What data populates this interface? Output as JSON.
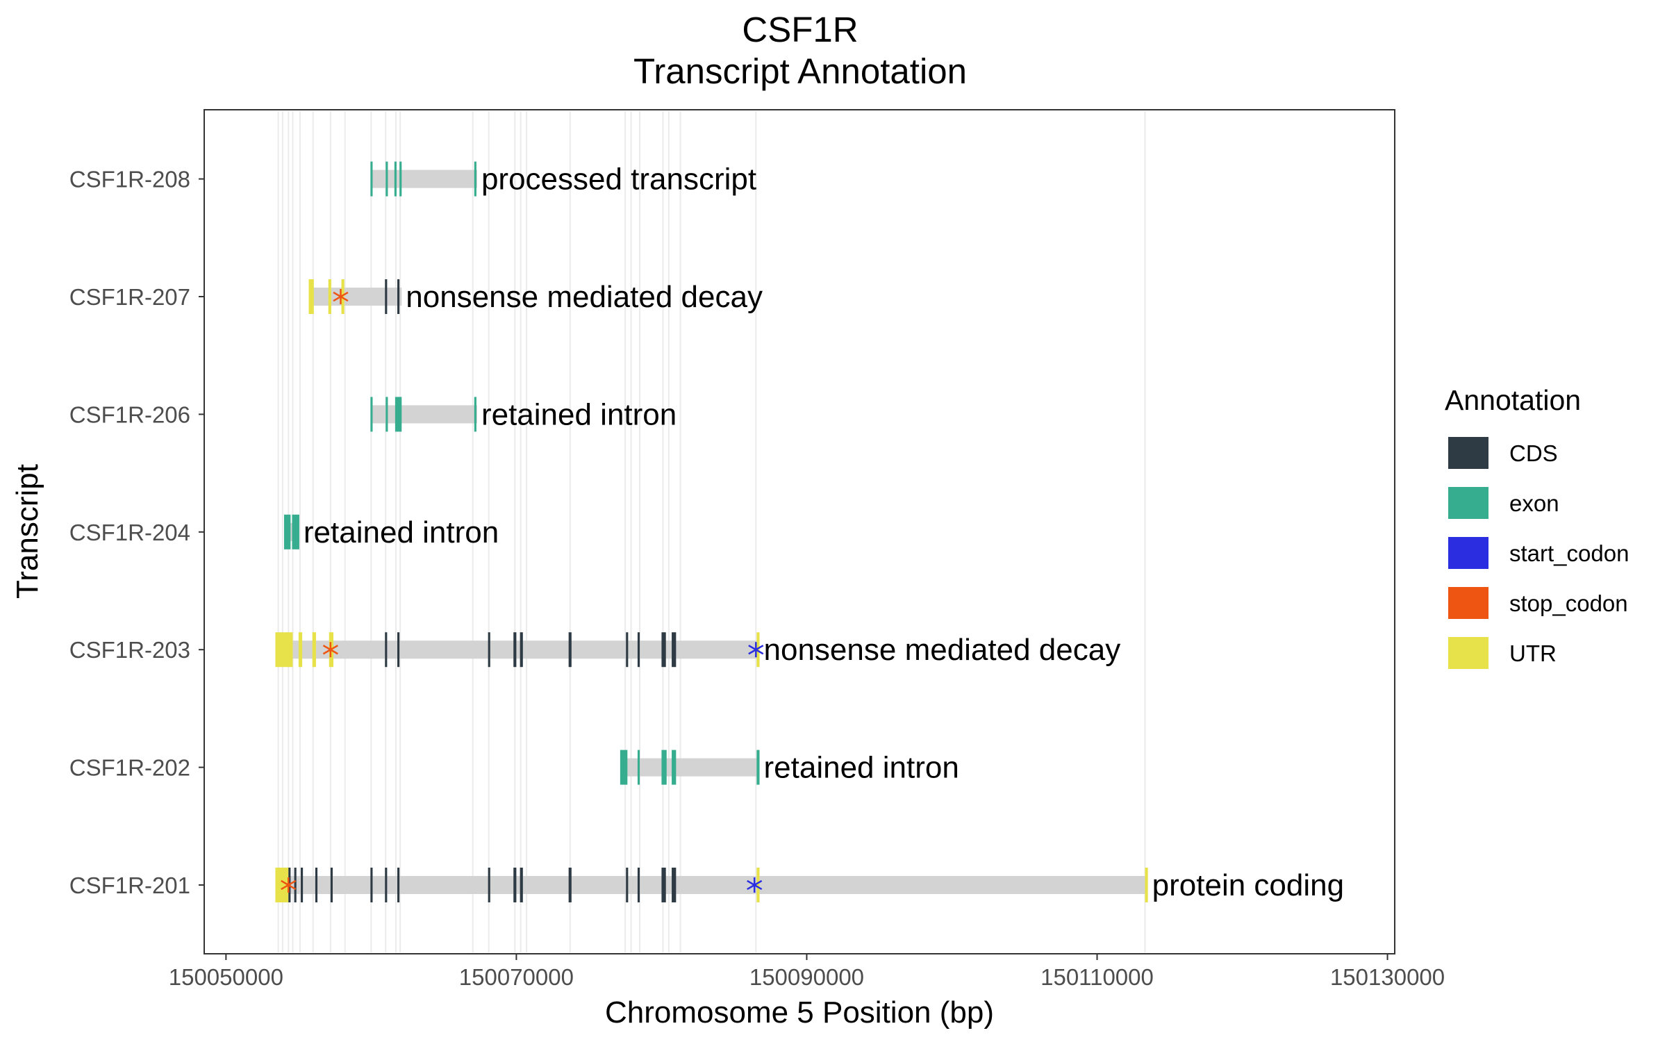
{
  "chart_data": {
    "type": "gene-track",
    "title_lines": [
      "CSF1R",
      "Transcript Annotation"
    ],
    "xlabel": "Chromosome 5 Position (bp)",
    "ylabel": "Transcript",
    "xlim": [
      150048500,
      150130500
    ],
    "x_ticks": [
      150050000,
      150070000,
      150090000,
      150110000,
      150130000
    ],
    "x_tick_labels": [
      "150050000",
      "150070000",
      "150090000",
      "150110000",
      "150130000"
    ],
    "legend": {
      "title": "Annotation",
      "position": "right",
      "entries": [
        {
          "key": "CDS",
          "label": "CDS",
          "color": "#2e3b44"
        },
        {
          "key": "exon",
          "label": "exon",
          "color": "#36ad8f"
        },
        {
          "key": "start_codon",
          "label": "start_codon",
          "color": "#2a2ee0"
        },
        {
          "key": "stop_codon",
          "label": "stop_codon",
          "color": "#ee5512"
        },
        {
          "key": "UTR",
          "label": "UTR",
          "color": "#e8e24a"
        }
      ]
    },
    "intron_color": "#d3d3d3",
    "guide_line_color": "#ebebeb",
    "guide_lines": [
      150053600,
      150053900,
      150054300,
      150054600,
      150055100,
      150056000,
      150057200,
      150058200,
      150060000,
      150061000,
      150061700,
      150062000,
      150067000,
      150068100,
      150069900,
      150070300,
      150070700,
      150073700,
      150077500,
      150077900,
      150078500,
      150080100,
      150080500,
      150081300,
      150086500,
      150113300
    ],
    "transcripts": [
      {
        "name": "CSF1R-208",
        "biotype": "processed transcript",
        "start": 150060000,
        "end": 150067300,
        "features": [
          {
            "type": "exon",
            "start": 150059950,
            "end": 150060100
          },
          {
            "type": "exon",
            "start": 150061000,
            "end": 150061150
          },
          {
            "type": "exon",
            "start": 150061600,
            "end": 150061750
          },
          {
            "type": "exon",
            "start": 150061950,
            "end": 150062100
          },
          {
            "type": "exon",
            "start": 150067100,
            "end": 150067250
          }
        ],
        "markers": []
      },
      {
        "name": "CSF1R-207",
        "biotype": "nonsense mediated decay",
        "start": 150055800,
        "end": 150062100,
        "features": [
          {
            "type": "UTR",
            "start": 150055700,
            "end": 150056050
          },
          {
            "type": "UTR",
            "start": 150057050,
            "end": 150057250
          },
          {
            "type": "UTR",
            "start": 150057950,
            "end": 150058150
          },
          {
            "type": "CDS",
            "start": 150060950,
            "end": 150061100
          },
          {
            "type": "CDS",
            "start": 150061800,
            "end": 150061950
          }
        ],
        "markers": [
          {
            "type": "stop_codon",
            "position": 150057900
          }
        ]
      },
      {
        "name": "CSF1R-206",
        "biotype": "retained intron",
        "start": 150060000,
        "end": 150067300,
        "features": [
          {
            "type": "exon",
            "start": 150059950,
            "end": 150060100
          },
          {
            "type": "exon",
            "start": 150061000,
            "end": 150061150
          },
          {
            "type": "exon",
            "start": 150061650,
            "end": 150062100
          },
          {
            "type": "exon",
            "start": 150067100,
            "end": 150067250
          }
        ],
        "markers": []
      },
      {
        "name": "CSF1R-204",
        "biotype": "retained intron",
        "start": 150054000,
        "end": 150055000,
        "features": [
          {
            "type": "exon",
            "start": 150054000,
            "end": 150054450
          },
          {
            "type": "exon",
            "start": 150054550,
            "end": 150055050
          }
        ],
        "markers": []
      },
      {
        "name": "CSF1R-203",
        "biotype": "nonsense mediated decay",
        "start": 150053500,
        "end": 150086700,
        "features": [
          {
            "type": "UTR",
            "start": 150053400,
            "end": 150054600
          },
          {
            "type": "UTR",
            "start": 150055000,
            "end": 150055250
          },
          {
            "type": "UTR",
            "start": 150055950,
            "end": 150056200
          },
          {
            "type": "UTR",
            "start": 150057100,
            "end": 150057400
          },
          {
            "type": "CDS",
            "start": 150060950,
            "end": 150061100
          },
          {
            "type": "CDS",
            "start": 150061800,
            "end": 150061950
          },
          {
            "type": "CDS",
            "start": 150068050,
            "end": 150068200
          },
          {
            "type": "CDS",
            "start": 150069800,
            "end": 150070000
          },
          {
            "type": "CDS",
            "start": 150070250,
            "end": 150070450
          },
          {
            "type": "CDS",
            "start": 150073600,
            "end": 150073800
          },
          {
            "type": "CDS",
            "start": 150077550,
            "end": 150077700
          },
          {
            "type": "CDS",
            "start": 150078350,
            "end": 150078500
          },
          {
            "type": "CDS",
            "start": 150080000,
            "end": 150080300
          },
          {
            "type": "CDS",
            "start": 150080700,
            "end": 150081000
          },
          {
            "type": "UTR",
            "start": 150086550,
            "end": 150086750
          }
        ],
        "markers": [
          {
            "type": "stop_codon",
            "position": 150057200
          },
          {
            "type": "start_codon",
            "position": 150086500
          }
        ]
      },
      {
        "name": "CSF1R-202",
        "biotype": "retained intron",
        "start": 150077300,
        "end": 150086700,
        "features": [
          {
            "type": "exon",
            "start": 150077150,
            "end": 150077650
          },
          {
            "type": "exon",
            "start": 150078350,
            "end": 150078500
          },
          {
            "type": "exon",
            "start": 150080000,
            "end": 150080350
          },
          {
            "type": "exon",
            "start": 150080700,
            "end": 150081000
          },
          {
            "type": "exon",
            "start": 150086550,
            "end": 150086750
          }
        ],
        "markers": []
      },
      {
        "name": "CSF1R-201",
        "biotype": "protein coding",
        "start": 150053500,
        "end": 150113400,
        "features": [
          {
            "type": "UTR",
            "start": 150053400,
            "end": 150054300
          },
          {
            "type": "CDS",
            "start": 150054300,
            "end": 150054450
          },
          {
            "type": "CDS",
            "start": 150054700,
            "end": 150054850
          },
          {
            "type": "CDS",
            "start": 150055150,
            "end": 150055300
          },
          {
            "type": "CDS",
            "start": 150056150,
            "end": 150056300
          },
          {
            "type": "CDS",
            "start": 150057200,
            "end": 150057350
          },
          {
            "type": "CDS",
            "start": 150059950,
            "end": 150060100
          },
          {
            "type": "CDS",
            "start": 150060950,
            "end": 150061100
          },
          {
            "type": "CDS",
            "start": 150061800,
            "end": 150061950
          },
          {
            "type": "CDS",
            "start": 150068050,
            "end": 150068200
          },
          {
            "type": "CDS",
            "start": 150069800,
            "end": 150070000
          },
          {
            "type": "CDS",
            "start": 150070250,
            "end": 150070450
          },
          {
            "type": "CDS",
            "start": 150073600,
            "end": 150073800
          },
          {
            "type": "CDS",
            "start": 150077550,
            "end": 150077700
          },
          {
            "type": "CDS",
            "start": 150078350,
            "end": 150078500
          },
          {
            "type": "CDS",
            "start": 150080000,
            "end": 150080300
          },
          {
            "type": "CDS",
            "start": 150080700,
            "end": 150081000
          },
          {
            "type": "UTR",
            "start": 150086550,
            "end": 150086750
          },
          {
            "type": "UTR",
            "start": 150113300,
            "end": 150113500
          }
        ],
        "markers": [
          {
            "type": "stop_codon",
            "position": 150054300
          },
          {
            "type": "start_codon",
            "position": 150086400
          }
        ]
      }
    ]
  }
}
